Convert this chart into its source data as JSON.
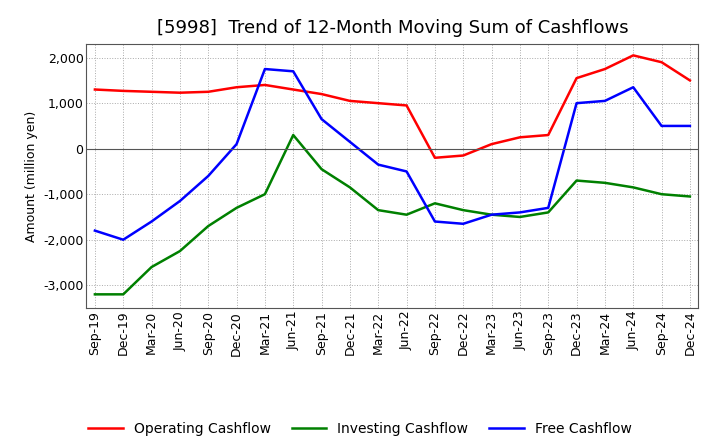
{
  "title": "[5998]  Trend of 12-Month Moving Sum of Cashflows",
  "ylabel": "Amount (million yen)",
  "ylim": [
    -3500,
    2300
  ],
  "yticks": [
    -3000,
    -2000,
    -1000,
    0,
    1000,
    2000
  ],
  "x_labels": [
    "Sep-19",
    "Dec-19",
    "Mar-20",
    "Jun-20",
    "Sep-20",
    "Dec-20",
    "Mar-21",
    "Jun-21",
    "Sep-21",
    "Dec-21",
    "Mar-22",
    "Jun-22",
    "Sep-22",
    "Dec-22",
    "Mar-23",
    "Jun-23",
    "Sep-23",
    "Dec-23",
    "Mar-24",
    "Jun-24",
    "Sep-24",
    "Dec-24"
  ],
  "operating_cashflow": [
    1300,
    1270,
    1250,
    1230,
    1250,
    1350,
    1400,
    1300,
    1200,
    1050,
    1000,
    950,
    -200,
    -150,
    100,
    250,
    300,
    1550,
    1750,
    2050,
    1900,
    1500
  ],
  "investing_cashflow": [
    -3200,
    -3200,
    -2600,
    -2250,
    -1700,
    -1300,
    -1000,
    300,
    -450,
    -850,
    -1350,
    -1450,
    -1200,
    -1350,
    -1450,
    -1500,
    -1400,
    -700,
    -750,
    -850,
    -1000,
    -1050
  ],
  "free_cashflow": [
    -1800,
    -2000,
    -1600,
    -1150,
    -600,
    100,
    1750,
    1700,
    650,
    150,
    -350,
    -500,
    -1600,
    -1650,
    -1450,
    -1400,
    -1300,
    1000,
    1050,
    1350,
    500,
    500
  ],
  "operating_color": "#ff0000",
  "investing_color": "#008000",
  "free_color": "#0000ff",
  "grid_color": "#aaaaaa",
  "background_color": "#ffffff",
  "title_fontsize": 13,
  "legend_fontsize": 10,
  "axis_fontsize": 9
}
